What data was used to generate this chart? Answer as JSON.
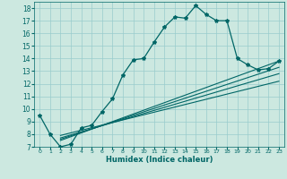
{
  "xlabel": "Humidex (Indice chaleur)",
  "ylabel": "",
  "bg_color": "#cce8e0",
  "grid_color": "#99cccc",
  "line_color": "#006666",
  "xlim": [
    -0.5,
    23.5
  ],
  "ylim": [
    7,
    18.5
  ],
  "yticks": [
    7,
    8,
    9,
    10,
    11,
    12,
    13,
    14,
    15,
    16,
    17,
    18
  ],
  "xticks": [
    0,
    1,
    2,
    3,
    4,
    5,
    6,
    7,
    8,
    9,
    10,
    11,
    12,
    13,
    14,
    15,
    16,
    17,
    18,
    19,
    20,
    21,
    22,
    23
  ],
  "main_line_x": [
    0,
    1,
    2,
    3,
    4,
    5,
    6,
    7,
    8,
    9,
    10,
    11,
    12,
    13,
    14,
    15,
    16,
    17,
    18,
    19,
    20,
    21,
    22,
    23
  ],
  "main_line_y": [
    9.5,
    8.0,
    7.0,
    7.2,
    8.5,
    8.7,
    9.8,
    10.8,
    12.7,
    13.9,
    14.0,
    15.3,
    16.5,
    17.3,
    17.2,
    18.2,
    17.5,
    17.0,
    17.0,
    14.0,
    13.5,
    13.1,
    13.2,
    13.8
  ],
  "linear_lines": [
    {
      "x": [
        2,
        23
      ],
      "y": [
        7.5,
        13.8
      ]
    },
    {
      "x": [
        2,
        23
      ],
      "y": [
        7.6,
        13.3
      ]
    },
    {
      "x": [
        2,
        23
      ],
      "y": [
        7.7,
        12.8
      ]
    },
    {
      "x": [
        2,
        23
      ],
      "y": [
        7.9,
        12.2
      ]
    }
  ]
}
